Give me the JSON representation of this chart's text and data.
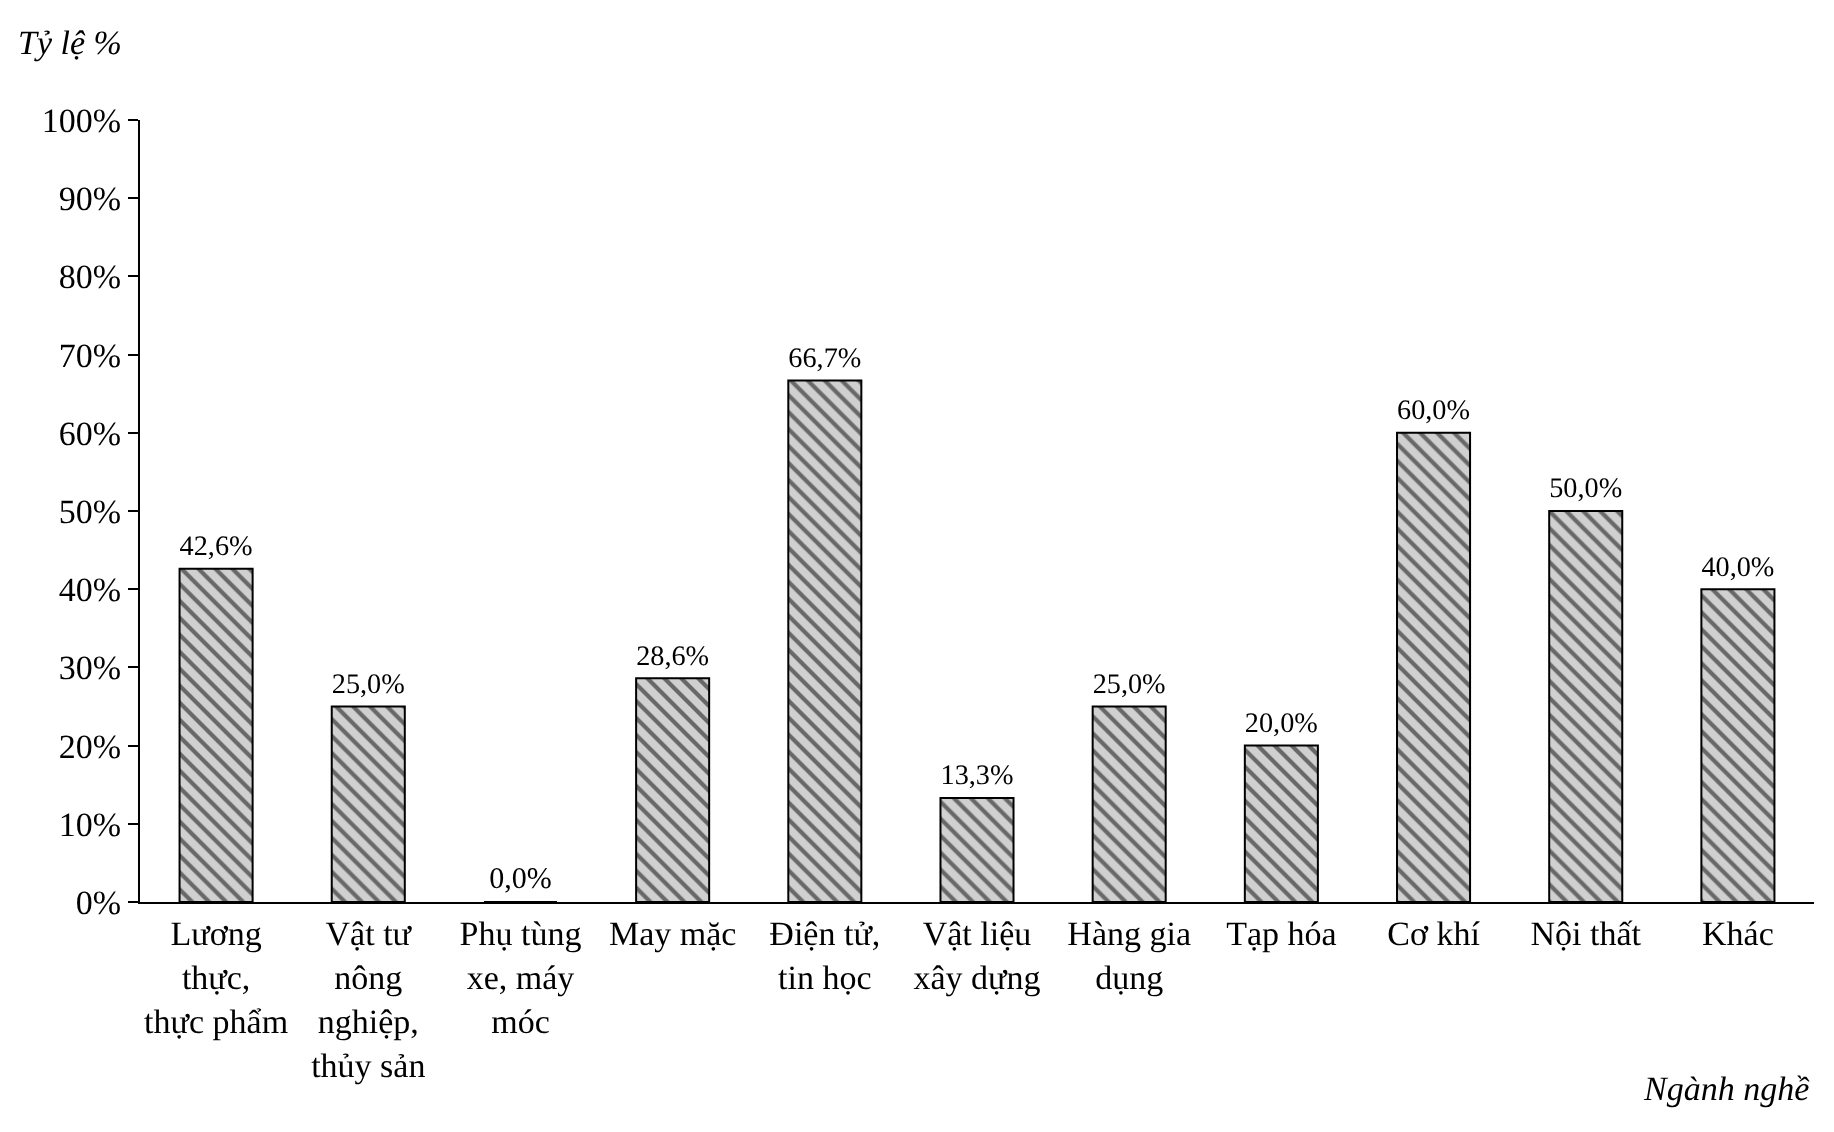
{
  "chart_data": {
    "type": "bar",
    "ylabel": "Tỷ lệ %",
    "xlabel": "Ngành nghề",
    "categories": [
      "Lương thực, thực phẩm",
      "Vật tư nông nghiệp, thủy sản",
      "Phụ tùng xe, máy móc",
      "May mặc",
      "Điện tử, tin học",
      "Vật liệu xây dựng",
      "Hàng gia dụng",
      "Tạp hóa",
      "Cơ khí",
      "Nội thất",
      "Khác"
    ],
    "values": [
      42.6,
      25.0,
      0.0,
      28.6,
      66.7,
      13.3,
      25.0,
      20.0,
      60.0,
      50.0,
      40.0
    ],
    "value_labels": [
      "42,6%",
      "25,0%",
      "0,0%",
      "28,6%",
      "66,7%",
      "13,3%",
      "25,0%",
      "20,0%",
      "60,0%",
      "50,0%",
      "40,0%"
    ],
    "color": "#000000",
    "ylim": [
      0,
      100
    ],
    "yticks": [
      {
        "value": 0,
        "label": "0%"
      },
      {
        "value": 10,
        "label": "10%"
      },
      {
        "value": 20,
        "label": "20%"
      },
      {
        "value": 30,
        "label": "30%"
      },
      {
        "value": 40,
        "label": "40%"
      },
      {
        "value": 50,
        "label": "50%"
      },
      {
        "value": 60,
        "label": "60%"
      },
      {
        "value": 70,
        "label": "70%"
      },
      {
        "value": 80,
        "label": "80%"
      },
      {
        "value": 90,
        "label": "90%"
      },
      {
        "value": 100,
        "label": "100%"
      }
    ],
    "grid": false,
    "legend": false
  }
}
